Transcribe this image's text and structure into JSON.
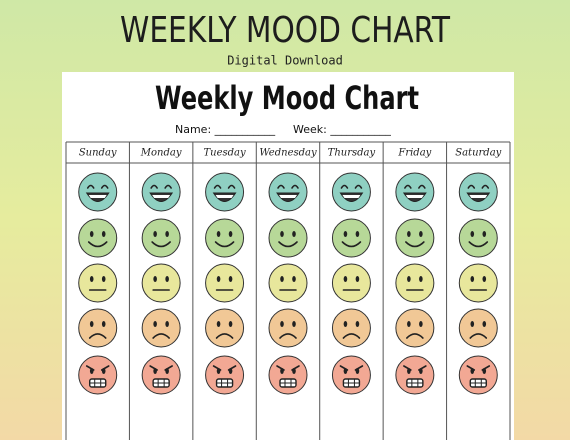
{
  "header": {
    "title": "WEEKLY MOOD CHART",
    "subtitle": "Digital Download"
  },
  "sheet": {
    "title": "Weekly Mood Chart",
    "name_field": "Name: ___________",
    "week_field": "Week: ___________",
    "days": [
      "Sunday",
      "Monday",
      "Tuesday",
      "Wednesday",
      "Thursday",
      "Friday",
      "Saturday"
    ]
  }
}
